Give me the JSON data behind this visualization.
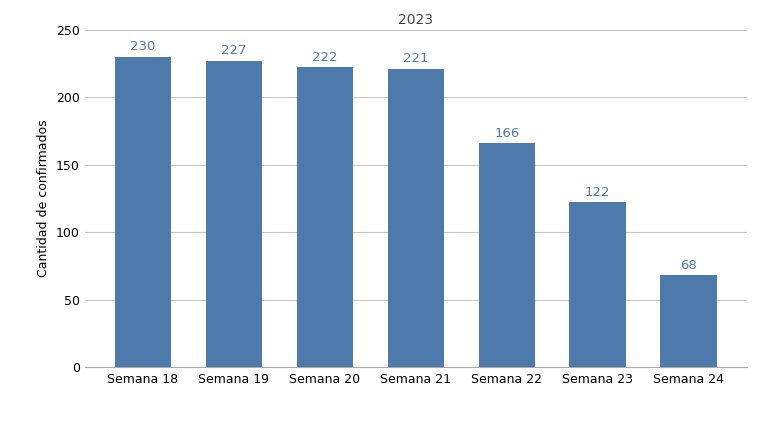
{
  "title": "2023",
  "categories": [
    "Semana 18",
    "Semana 19",
    "Semana 20",
    "Semana 21",
    "Semana 22",
    "Semana 23",
    "Semana 24"
  ],
  "values": [
    230,
    227,
    222,
    221,
    166,
    122,
    68
  ],
  "bar_color": "#4d7aaa",
  "label_color": "#4d7aaa",
  "ylabel": "Cantidad de confirmados",
  "ylim": [
    0,
    250
  ],
  "yticks": [
    0,
    50,
    100,
    150,
    200,
    250
  ],
  "background_color": "#ffffff",
  "grid_color": "#c8c8c8",
  "title_fontsize": 10,
  "label_fontsize": 9,
  "tick_fontsize": 9,
  "bar_label_fontsize": 9.5
}
